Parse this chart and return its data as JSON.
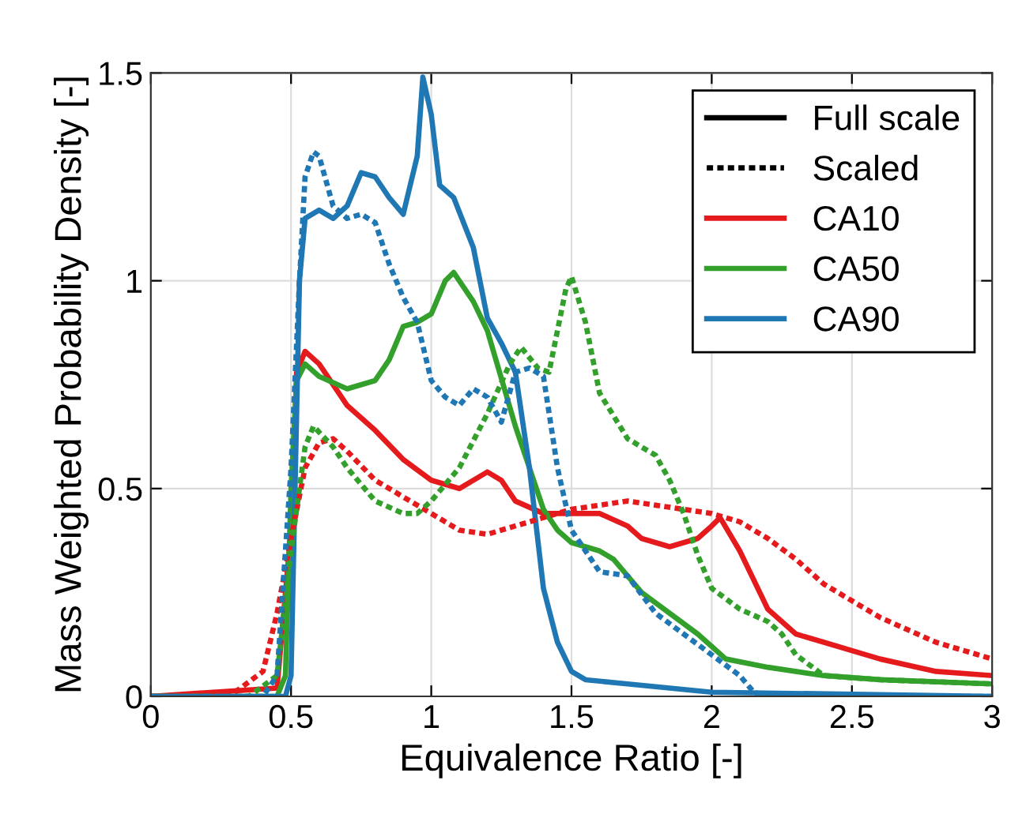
{
  "chart_data": {
    "type": "line",
    "xlabel": "Equivalence Ratio [-]",
    "ylabel": "Mass Weighted Probability Density [-]",
    "xlim": [
      0,
      3
    ],
    "ylim": [
      0,
      1.5
    ],
    "xticks": [
      0,
      0.5,
      1,
      1.5,
      2,
      2.5,
      3
    ],
    "yticks": [
      0,
      0.5,
      1,
      1.5
    ],
    "grid": true,
    "legend": "top right",
    "marker": "none",
    "series": [
      {
        "name": "Full scale",
        "color": "#000000",
        "line_style": "solid"
      },
      {
        "name": "Scaled",
        "color": "#000000",
        "line_style": "dotted"
      },
      {
        "name": "CA10",
        "color": "#e41a1c",
        "line_style": "solid",
        "x": [
          0,
          0.45,
          0.5,
          0.52,
          0.55,
          0.6,
          0.7,
          0.8,
          0.9,
          1.0,
          1.1,
          1.2,
          1.25,
          1.3,
          1.4,
          1.5,
          1.6,
          1.7,
          1.75,
          1.85,
          1.95,
          2.0,
          2.03,
          2.1,
          2.2,
          2.3,
          2.4,
          2.6,
          2.8,
          3.0
        ],
        "values": [
          0,
          0.02,
          0.4,
          0.78,
          0.83,
          0.8,
          0.7,
          0.64,
          0.57,
          0.52,
          0.5,
          0.54,
          0.52,
          0.47,
          0.44,
          0.44,
          0.44,
          0.41,
          0.38,
          0.36,
          0.38,
          0.41,
          0.43,
          0.35,
          0.21,
          0.15,
          0.13,
          0.09,
          0.06,
          0.05
        ]
      },
      {
        "name": "CA50",
        "color": "#33a02c",
        "line_style": "solid",
        "x": [
          0,
          0.45,
          0.48,
          0.5,
          0.52,
          0.55,
          0.6,
          0.7,
          0.8,
          0.85,
          0.9,
          0.95,
          1.0,
          1.05,
          1.08,
          1.1,
          1.15,
          1.2,
          1.3,
          1.35,
          1.4,
          1.45,
          1.5,
          1.6,
          1.65,
          1.75,
          1.85,
          1.95,
          2.0,
          2.05,
          2.2,
          2.4,
          2.6,
          3.0
        ],
        "values": [
          0,
          0,
          0.05,
          0.5,
          0.76,
          0.8,
          0.77,
          0.74,
          0.76,
          0.81,
          0.89,
          0.9,
          0.92,
          1.0,
          1.02,
          1.0,
          0.95,
          0.88,
          0.65,
          0.55,
          0.45,
          0.4,
          0.37,
          0.35,
          0.33,
          0.25,
          0.2,
          0.15,
          0.12,
          0.09,
          0.07,
          0.05,
          0.04,
          0.03
        ]
      },
      {
        "name": "CA90",
        "color": "#1f77b4",
        "line_style": "solid",
        "x": [
          0,
          0.48,
          0.5,
          0.53,
          0.55,
          0.6,
          0.65,
          0.7,
          0.75,
          0.8,
          0.85,
          0.9,
          0.95,
          0.97,
          1.0,
          1.03,
          1.08,
          1.15,
          1.2,
          1.25,
          1.3,
          1.35,
          1.4,
          1.45,
          1.5,
          1.55,
          1.7,
          2.0,
          3.0
        ],
        "values": [
          0,
          0,
          0.05,
          1.0,
          1.15,
          1.17,
          1.15,
          1.18,
          1.26,
          1.25,
          1.2,
          1.16,
          1.3,
          1.49,
          1.4,
          1.23,
          1.2,
          1.08,
          0.91,
          0.85,
          0.78,
          0.55,
          0.26,
          0.13,
          0.06,
          0.04,
          0.03,
          0.01,
          0
        ]
      },
      {
        "color": "#e41a1c",
        "line_style": "dotted",
        "x": [
          0,
          0.2,
          0.3,
          0.4,
          0.45,
          0.5,
          0.55,
          0.6,
          0.65,
          0.7,
          0.8,
          0.9,
          1.0,
          1.1,
          1.2,
          1.3,
          1.4,
          1.5,
          1.6,
          1.7,
          1.8,
          1.9,
          2.0,
          2.1,
          2.2,
          2.3,
          2.4,
          2.5,
          2.6,
          2.7,
          2.8,
          2.9,
          3.0
        ],
        "values": [
          0,
          0,
          0.01,
          0.06,
          0.2,
          0.38,
          0.55,
          0.61,
          0.62,
          0.59,
          0.52,
          0.48,
          0.44,
          0.4,
          0.39,
          0.41,
          0.43,
          0.45,
          0.46,
          0.47,
          0.46,
          0.45,
          0.44,
          0.42,
          0.38,
          0.33,
          0.27,
          0.23,
          0.19,
          0.16,
          0.13,
          0.11,
          0.09
        ]
      },
      {
        "color": "#33a02c",
        "line_style": "dotted",
        "x": [
          0,
          0.35,
          0.45,
          0.5,
          0.55,
          0.58,
          0.65,
          0.7,
          0.8,
          0.9,
          0.95,
          1.0,
          1.1,
          1.2,
          1.28,
          1.32,
          1.38,
          1.42,
          1.48,
          1.5,
          1.55,
          1.6,
          1.7,
          1.8,
          1.85,
          1.9,
          1.95,
          2.0,
          2.1,
          2.2,
          2.25,
          2.3,
          2.4,
          2.6,
          3.0
        ],
        "values": [
          0,
          0,
          0.05,
          0.35,
          0.6,
          0.65,
          0.6,
          0.55,
          0.47,
          0.44,
          0.44,
          0.47,
          0.55,
          0.68,
          0.8,
          0.84,
          0.79,
          0.78,
          0.98,
          1.01,
          0.9,
          0.73,
          0.62,
          0.58,
          0.52,
          0.44,
          0.34,
          0.26,
          0.21,
          0.18,
          0.15,
          0.1,
          0.05,
          0.04,
          0.03
        ]
      },
      {
        "color": "#1f77b4",
        "line_style": "dotted",
        "x": [
          0,
          0.4,
          0.45,
          0.5,
          0.53,
          0.55,
          0.58,
          0.6,
          0.65,
          0.7,
          0.75,
          0.8,
          0.85,
          0.9,
          0.95,
          1.0,
          1.05,
          1.1,
          1.15,
          1.2,
          1.25,
          1.3,
          1.35,
          1.4,
          1.45,
          1.5,
          1.6,
          1.7,
          1.8,
          1.9,
          2.0,
          2.1,
          2.15,
          2.2,
          3.0
        ],
        "values": [
          0,
          0,
          0.05,
          0.55,
          1.0,
          1.25,
          1.31,
          1.3,
          1.18,
          1.15,
          1.16,
          1.14,
          1.04,
          0.96,
          0.9,
          0.76,
          0.72,
          0.7,
          0.74,
          0.72,
          0.66,
          0.78,
          0.79,
          0.77,
          0.55,
          0.4,
          0.3,
          0.29,
          0.2,
          0.15,
          0.1,
          0.05,
          0.01,
          0,
          0
        ]
      }
    ]
  }
}
